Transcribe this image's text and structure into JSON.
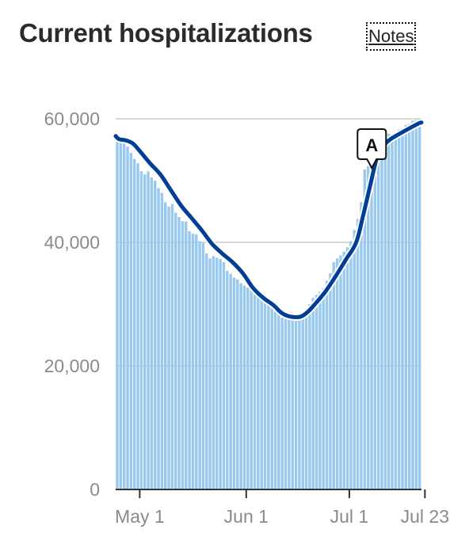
{
  "header": {
    "title": "Current hospitalizations",
    "notes_label": "Notes"
  },
  "chart_data": {
    "type": "bar",
    "title": "Current hospitalizations",
    "xlabel": "",
    "ylabel": "",
    "x_range": [
      "Apr 24",
      "Jul 23"
    ],
    "ylim": [
      0,
      60000
    ],
    "y_ticks": [
      0,
      20000,
      40000,
      60000
    ],
    "y_tick_labels": [
      "0",
      "20,000",
      "40,000",
      "60,000"
    ],
    "x_tick_labels": [
      "May 1",
      "Jun 1",
      "Jul 1",
      "Jul 23"
    ],
    "x_tick_days": [
      7,
      38,
      68,
      90
    ],
    "grid": true,
    "colors": {
      "bars": "#99c9ef",
      "line": "#033e96",
      "grid": "#cccccc",
      "axis": "#333333"
    },
    "series": [
      {
        "type": "bar",
        "values": [
          57000,
          56400,
          56000,
          55500,
          54500,
          53500,
          52800,
          51500,
          51000,
          51500,
          50500,
          50000,
          48800,
          48000,
          46500,
          45800,
          46200,
          44800,
          44100,
          43400,
          43400,
          41800,
          41400,
          41300,
          40200,
          39900,
          38200,
          37400,
          37800,
          37500,
          37300,
          36800,
          35400,
          34900,
          34300,
          34000,
          33400,
          33000,
          32700,
          32300,
          32300,
          31600,
          31400,
          30800,
          30400,
          30200,
          29400,
          28600,
          27800,
          27600,
          27600,
          28300,
          28100,
          28000,
          28500,
          29200,
          30000,
          31000,
          31500,
          32000,
          32600,
          33800,
          35000,
          36800,
          37400,
          37900,
          38500,
          39200,
          40200,
          42000,
          43800,
          46500,
          51800,
          52300,
          53500,
          54700,
          55600,
          56400,
          57100,
          57600,
          57300,
          57700,
          58300,
          58500,
          59000,
          59200,
          59700,
          59800,
          60000
        ]
      },
      {
        "type": "line",
        "values": [
          [
            0,
            57200
          ],
          [
            1,
            56700
          ],
          [
            3,
            56500
          ],
          [
            5,
            56000
          ],
          [
            7,
            54800
          ],
          [
            10,
            52800
          ],
          [
            13,
            51000
          ],
          [
            16,
            48500
          ],
          [
            19,
            46000
          ],
          [
            22,
            44000
          ],
          [
            25,
            42000
          ],
          [
            28,
            39800
          ],
          [
            31,
            38200
          ],
          [
            34,
            36800
          ],
          [
            37,
            35000
          ],
          [
            40,
            32600
          ],
          [
            43,
            31000
          ],
          [
            46,
            29800
          ],
          [
            48,
            28700
          ],
          [
            50,
            28100
          ],
          [
            52,
            27900
          ],
          [
            54,
            28000
          ],
          [
            56,
            28800
          ],
          [
            58,
            30000
          ],
          [
            61,
            32000
          ],
          [
            64,
            34500
          ],
          [
            67,
            37200
          ],
          [
            70,
            40000
          ],
          [
            72,
            44300
          ],
          [
            74,
            49000
          ],
          [
            76,
            53600
          ],
          [
            78,
            55600
          ],
          [
            80,
            56700
          ],
          [
            84,
            58000
          ],
          [
            88,
            59200
          ],
          [
            89,
            59400
          ]
        ]
      }
    ],
    "annotations": [
      {
        "label": "A",
        "day": 75
      }
    ]
  }
}
